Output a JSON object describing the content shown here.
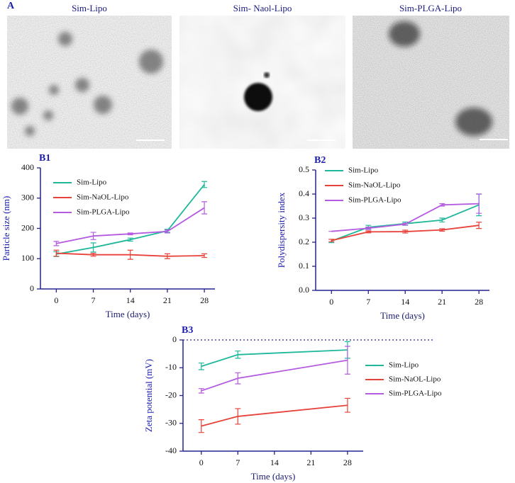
{
  "figure": {
    "panel_label": "A",
    "image_titles": [
      "Sim-Lipo",
      "Sim- Naol-Lipo",
      "Sim-PLGA-Lipo"
    ]
  },
  "chart_data": [
    {
      "type": "line",
      "panel_label": "B1",
      "xlabel": "Time (days)",
      "ylabel": "Particle size (nm)",
      "x": [
        0,
        7,
        14,
        21,
        28
      ],
      "xlim": [
        -3,
        30
      ],
      "xticks": [
        0,
        7,
        14,
        21,
        28
      ],
      "ylim": [
        0,
        400
      ],
      "yticks": [
        0,
        100,
        200,
        300,
        400
      ],
      "legend": "upper left",
      "series": [
        {
          "name": "Sim-Lipo",
          "color": "#1fb89a",
          "values": [
            115,
            137,
            163,
            192,
            345
          ],
          "errors": [
            8,
            15,
            5,
            5,
            10
          ]
        },
        {
          "name": "Sim-NaOL-Lipo",
          "color": "#e8413a",
          "values": [
            118,
            113,
            113,
            108,
            110
          ],
          "errors": [
            10,
            5,
            15,
            8,
            6
          ]
        },
        {
          "name": "Sim-PLGA-Lipo",
          "color": "#b45be0",
          "values": [
            150,
            175,
            182,
            190,
            268
          ],
          "errors": [
            7,
            12,
            3,
            5,
            20
          ]
        }
      ]
    },
    {
      "type": "line",
      "panel_label": "B2",
      "xlabel": "Time (days)",
      "ylabel": "Polydispersity index",
      "x": [
        0,
        7,
        14,
        21,
        28
      ],
      "xlim": [
        -3,
        30
      ],
      "xticks": [
        0,
        7,
        14,
        21,
        28
      ],
      "ylim": [
        0,
        0.5
      ],
      "yticks": [
        {
          "value": 0,
          "label": "0.0"
        },
        0.1,
        0.2,
        0.3,
        0.4,
        0.5
      ],
      "legend": "upper left",
      "series": [
        {
          "name": "Sim-Lipo",
          "color": "#1fb89a",
          "values": [
            0.205,
            0.262,
            0.277,
            0.292,
            0.355
          ],
          "errors": [
            0.007,
            0.008,
            0.007,
            0.008,
            0.045
          ]
        },
        {
          "name": "Sim-NaOL-Lipo",
          "color": "#e8413a",
          "values": [
            0.207,
            0.243,
            0.244,
            0.251,
            0.27
          ],
          "errors": [
            0.005,
            0.004,
            0.006,
            0.005,
            0.013
          ]
        },
        {
          "name": "Sim-PLGA-Lipo",
          "color": "#b45be0",
          "values": [
            0.245,
            0.258,
            0.275,
            0.355,
            0.36
          ],
          "errors": [
            0,
            0.005,
            0.004,
            0.005,
            0.04
          ]
        }
      ]
    },
    {
      "type": "line",
      "panel_label": "B3",
      "xlabel": "Time (days)",
      "ylabel": "Zeta potential (mV)",
      "x": [
        0,
        7,
        28
      ],
      "xlim": [
        -3.5,
        31
      ],
      "xticks": [
        0,
        7,
        14,
        21,
        28
      ],
      "ylim": [
        -40,
        0
      ],
      "yticks": [
        -40,
        -30,
        -20,
        -10,
        0
      ],
      "legend": "right",
      "zero_line": true,
      "series": [
        {
          "name": "Sim-Lipo",
          "color": "#1fb89a",
          "values": [
            -9.5,
            -5.3,
            -3.6
          ],
          "errors": [
            1.2,
            1.3,
            3
          ]
        },
        {
          "name": "Sim-NaOL-Lipo",
          "color": "#e8413a",
          "values": [
            -31,
            -27.5,
            -23.5
          ],
          "errors": [
            2.3,
            2.8,
            2.5
          ]
        },
        {
          "name": "Sim-PLGA-Lipo",
          "color": "#b45be0",
          "values": [
            -18.3,
            -13.8,
            -7.3
          ],
          "errors": [
            0.8,
            2,
            5
          ]
        }
      ]
    }
  ]
}
